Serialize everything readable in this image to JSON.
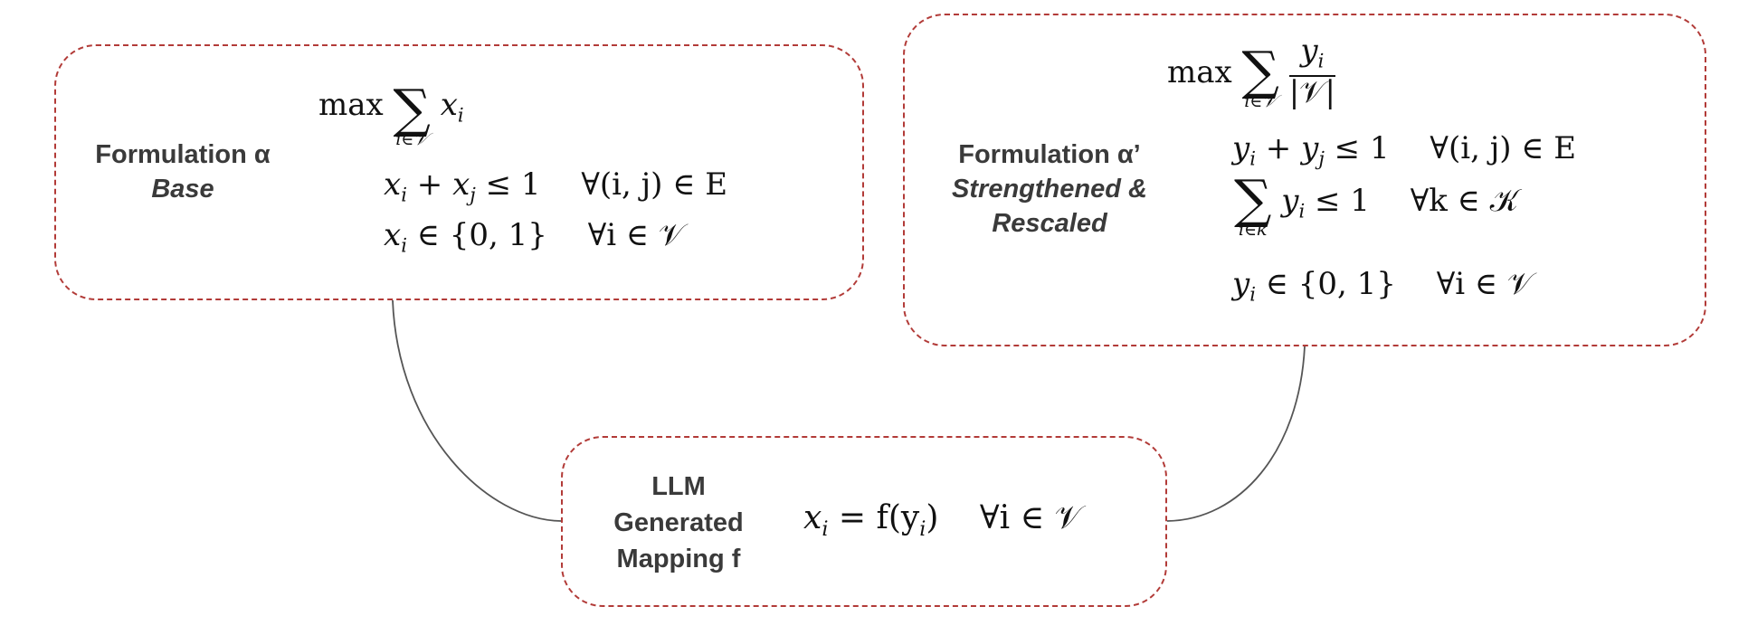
{
  "diagram": {
    "base": {
      "title": "Formulation α",
      "subtitle": "Base",
      "objective": {
        "op": "max",
        "sum_under": "i∈𝒱",
        "term": "x",
        "term_sub": "i"
      },
      "constraint_1": {
        "lhs": "x",
        "lhs_sub": "i",
        "plus": "+",
        "rhs": "x",
        "rhs_sub": "j",
        "rel": "≤ 1",
        "quant": "∀(i, j) ∈ E"
      },
      "constraint_2": {
        "lhs": "x",
        "lhs_sub": "i",
        "rel": "∈ {0, 1}",
        "quant": "∀i ∈ 𝒱"
      }
    },
    "strengthened": {
      "title": "Formulation α’",
      "subtitle_1": "Strengthened &",
      "subtitle_2": "Rescaled",
      "objective": {
        "op": "max",
        "sum_under": "i∈𝒱",
        "num": "y",
        "num_sub": "i",
        "den": "|𝒱|"
      },
      "constraint_1": {
        "lhs": "y",
        "lhs_sub": "i",
        "plus": "+",
        "rhs": "y",
        "rhs_sub": "j",
        "rel": "≤ 1",
        "quant": "∀(i, j) ∈ E"
      },
      "constraint_2": {
        "sum_under": "i∈k",
        "term": "y",
        "term_sub": "i",
        "rel": "≤ 1",
        "quant": "∀k ∈ 𝒦"
      },
      "constraint_3": {
        "lhs": "y",
        "lhs_sub": "i",
        "rel": "∈ {0, 1}",
        "quant": "∀i ∈ 𝒱"
      }
    },
    "mapping": {
      "line_1": "LLM",
      "line_2": "Generated",
      "line_3": "Mapping f",
      "eq": {
        "lhs": "x",
        "lhs_sub": "i",
        "rel": "= f(y",
        "rel_sub": "i",
        "close": ")",
        "quant": "∀i ∈ 𝒱"
      }
    },
    "colors": {
      "dashed_border": "#b23b38",
      "connector": "#555555",
      "label_text": "#3a3a3a"
    }
  }
}
